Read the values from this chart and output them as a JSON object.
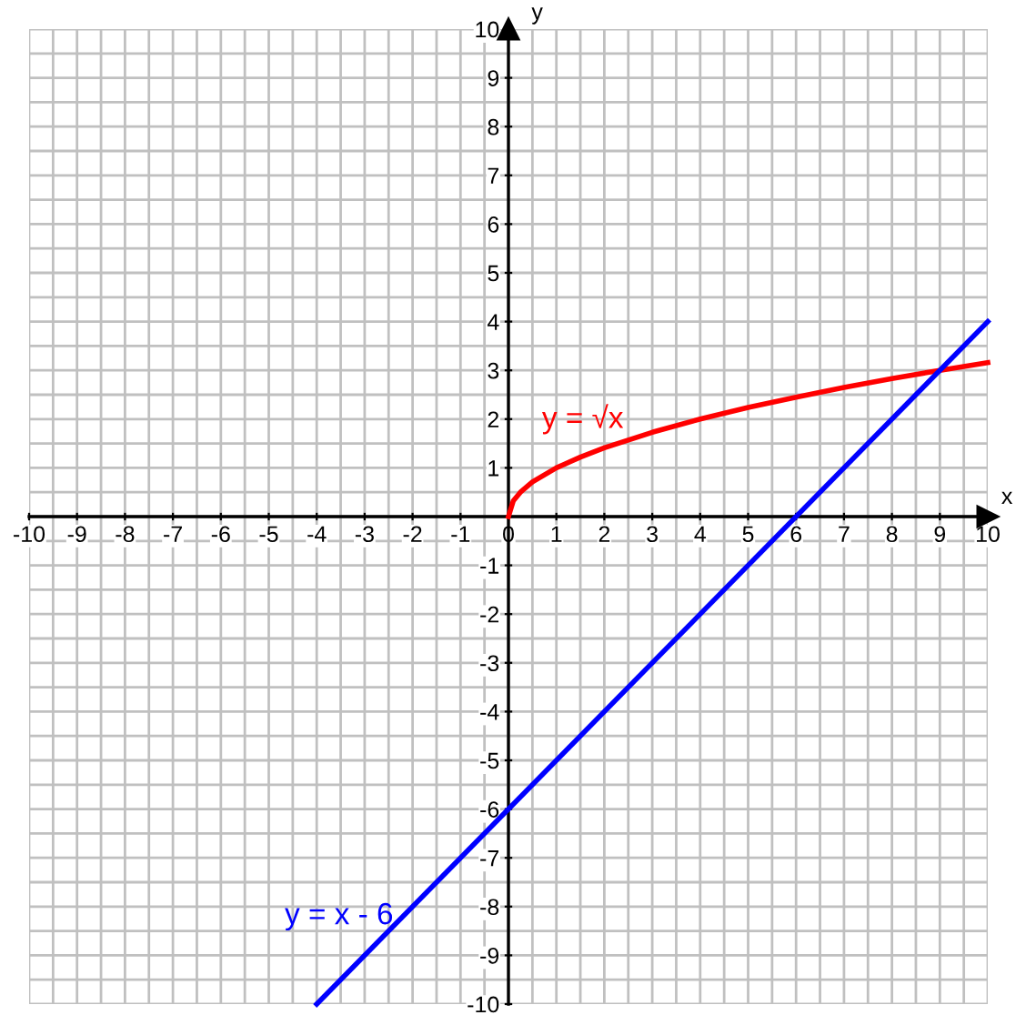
{
  "chart_data": {
    "type": "line",
    "xlabel": "x",
    "ylabel": "y",
    "xlim": [
      -10,
      10
    ],
    "ylim": [
      -10,
      10
    ],
    "xticks": [
      -10,
      -9,
      -8,
      -7,
      -6,
      -5,
      -4,
      -3,
      -2,
      -1,
      0,
      1,
      2,
      3,
      4,
      5,
      6,
      7,
      8,
      9,
      10
    ],
    "yticks": [
      -10,
      -9,
      -8,
      -7,
      -6,
      -5,
      -4,
      -3,
      -2,
      -1,
      {
        "value": 0,
        "label": null
      },
      1,
      2,
      3,
      4,
      5,
      6,
      7,
      8,
      9,
      10
    ],
    "grid": true,
    "marker": "none",
    "line_style": "solid",
    "series": [
      {
        "name": "y = √x",
        "color": "#ff0000",
        "x": [
          0,
          0.1,
          0.25,
          0.5,
          1,
          1.5,
          2,
          3,
          4,
          5,
          6,
          7,
          8,
          9,
          10
        ],
        "values": [
          0,
          0.32,
          0.5,
          0.71,
          1,
          1.22,
          1.41,
          1.73,
          2,
          2.24,
          2.45,
          2.65,
          2.83,
          3,
          3.16
        ]
      },
      {
        "name": "y = x - 6",
        "color": "#0000ff",
        "x": [
          -4,
          10
        ],
        "values": [
          -10,
          4
        ]
      }
    ]
  }
}
